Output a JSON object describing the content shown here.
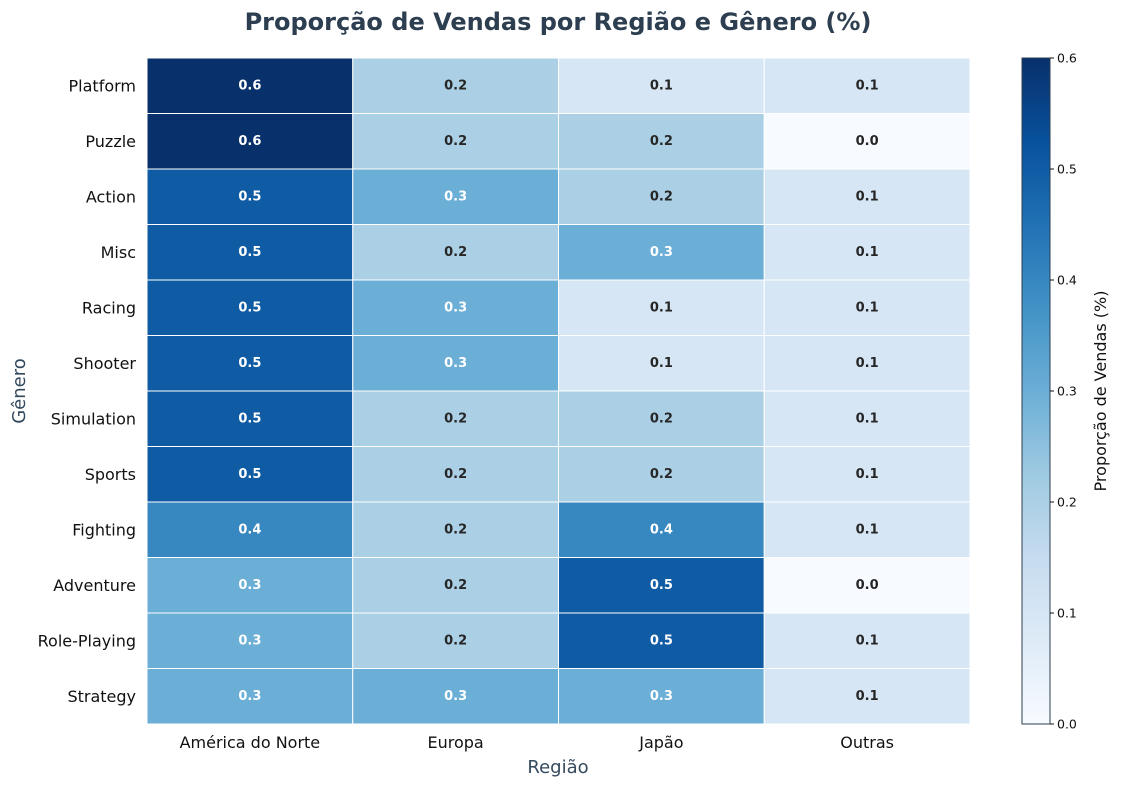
{
  "chart_data": {
    "type": "heatmap",
    "title": "Proporção de Vendas por Região e Gênero (%)",
    "xlabel": "Região",
    "ylabel": "Gênero",
    "x_categories": [
      "América do Norte",
      "Europa",
      "Japão",
      "Outras"
    ],
    "y_categories": [
      "Platform",
      "Puzzle",
      "Action",
      "Misc",
      "Racing",
      "Shooter",
      "Simulation",
      "Sports",
      "Fighting",
      "Adventure",
      "Role-Playing",
      "Strategy"
    ],
    "values": [
      [
        0.6,
        0.2,
        0.1,
        0.1
      ],
      [
        0.6,
        0.2,
        0.2,
        0.0
      ],
      [
        0.5,
        0.3,
        0.2,
        0.1
      ],
      [
        0.5,
        0.2,
        0.3,
        0.1
      ],
      [
        0.5,
        0.3,
        0.1,
        0.1
      ],
      [
        0.5,
        0.3,
        0.1,
        0.1
      ],
      [
        0.5,
        0.2,
        0.2,
        0.1
      ],
      [
        0.5,
        0.2,
        0.2,
        0.1
      ],
      [
        0.4,
        0.2,
        0.4,
        0.1
      ],
      [
        0.3,
        0.2,
        0.5,
        0.0
      ],
      [
        0.3,
        0.2,
        0.5,
        0.1
      ],
      [
        0.3,
        0.3,
        0.3,
        0.1
      ]
    ],
    "value_labels": [
      [
        "0.6",
        "0.2",
        "0.1",
        "0.1"
      ],
      [
        "0.6",
        "0.2",
        "0.2",
        "0.0"
      ],
      [
        "0.5",
        "0.3",
        "0.2",
        "0.1"
      ],
      [
        "0.5",
        "0.2",
        "0.3",
        "0.1"
      ],
      [
        "0.5",
        "0.3",
        "0.1",
        "0.1"
      ],
      [
        "0.5",
        "0.3",
        "0.1",
        "0.1"
      ],
      [
        "0.5",
        "0.2",
        "0.2",
        "0.1"
      ],
      [
        "0.5",
        "0.2",
        "0.2",
        "0.1"
      ],
      [
        "0.4",
        "0.2",
        "0.4",
        "0.1"
      ],
      [
        "0.3",
        "0.2",
        "0.5",
        "0.0"
      ],
      [
        "0.3",
        "0.2",
        "0.5",
        "0.1"
      ],
      [
        "0.3",
        "0.3",
        "0.3",
        "0.1"
      ]
    ],
    "colormap": "Blues",
    "colorbar": {
      "label": "Proporção de Vendas (%)",
      "range": [
        0.0,
        0.6
      ],
      "ticks": [
        "0.0",
        "0.1",
        "0.2",
        "0.3",
        "0.4",
        "0.5",
        "0.6"
      ]
    },
    "colors": {
      "title": "#2c3e50",
      "axis_label": "#34495e",
      "cell_border": "#ffffff",
      "text_dark": "#262626",
      "text_light": "#ffffff"
    }
  }
}
